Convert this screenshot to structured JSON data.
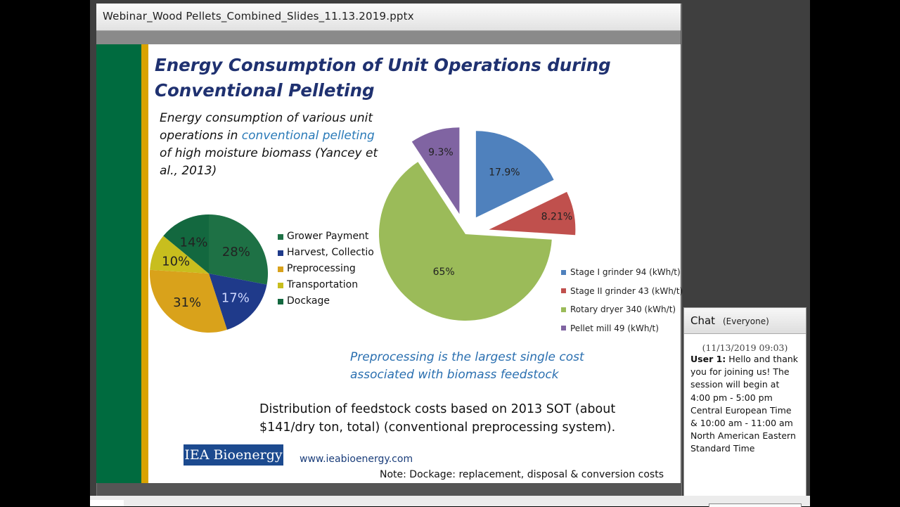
{
  "window": {
    "title": "Webinar_Wood Pellets_Combined_Slides_11.13.2019.pptx"
  },
  "slide": {
    "title_line1": "Energy Consumption of Unit Operations during",
    "title_line2": "Conventional Pelleting",
    "intro_pre": "Energy consumption of various unit operations in ",
    "intro_highlight": "conventional pelleting",
    "intro_post": " of high moisture biomass (Yancey et al., 2013)",
    "quote_line1": "Preprocessing is the largest single cost",
    "quote_line2": "associated with biomass feedstock",
    "distribution_text": "Distribution of feedstock costs based on 2013 SOT (about $141/dry ton, total) (conventional preprocessing system).",
    "logo_text": "IEA Bioenergy",
    "url": "www.ieabioenergy.com",
    "note": "Note: Dockage: replacement, disposal & conversion costs",
    "colors": {
      "green_band": "#006b3f",
      "gold_band": "#d9a300",
      "title": "#1f3170",
      "highlight": "#2a7ab8"
    }
  },
  "chart_data": [
    {
      "type": "pie",
      "title": "",
      "categories": [
        "Grower Payment",
        "Harvest, Collection",
        "Preprocessing",
        "Transportation",
        "Dockage"
      ],
      "legend_labels": [
        "Grower Payment",
        "Harvest, Collectio",
        "Preprocessing",
        "Transportation",
        "Dockage"
      ],
      "values": [
        28,
        17,
        31,
        10,
        14
      ],
      "labels": [
        "28%",
        "17%",
        "31%",
        "10%",
        "14%"
      ],
      "colors": [
        "#1e7145",
        "#1f3a8a",
        "#d9a21b",
        "#c8be1e",
        "#13683f"
      ],
      "legend_position": "right"
    },
    {
      "type": "pie",
      "title": "",
      "exploded": true,
      "categories": [
        "Stage I grinder  94  (kWh/t)",
        "Stage II grinder 43 (kWh/t)",
        "Rotary dryer 340 (kWh/t)",
        "Pellet mill 49 (kWh/t)"
      ],
      "values": [
        17.9,
        8.21,
        65,
        9.3
      ],
      "labels": [
        "17.9%",
        "8.21%",
        "65%",
        "9.3%"
      ],
      "colors": [
        "#4f81bd",
        "#c0504d",
        "#9bbb59",
        "#8064a2"
      ],
      "legend_position": "bottom-right"
    }
  ],
  "chat": {
    "title": "Chat",
    "scope": "(Everyone)",
    "timestamp": "(11/13/2019 09:03)",
    "sender": "User 1:",
    "message": " Hello and thank you for joining us! The session will begin at 4:00 pm - 5:00 pm Central European Time & 10:00 am - 11:00 am North American Eastern Standard Time"
  }
}
